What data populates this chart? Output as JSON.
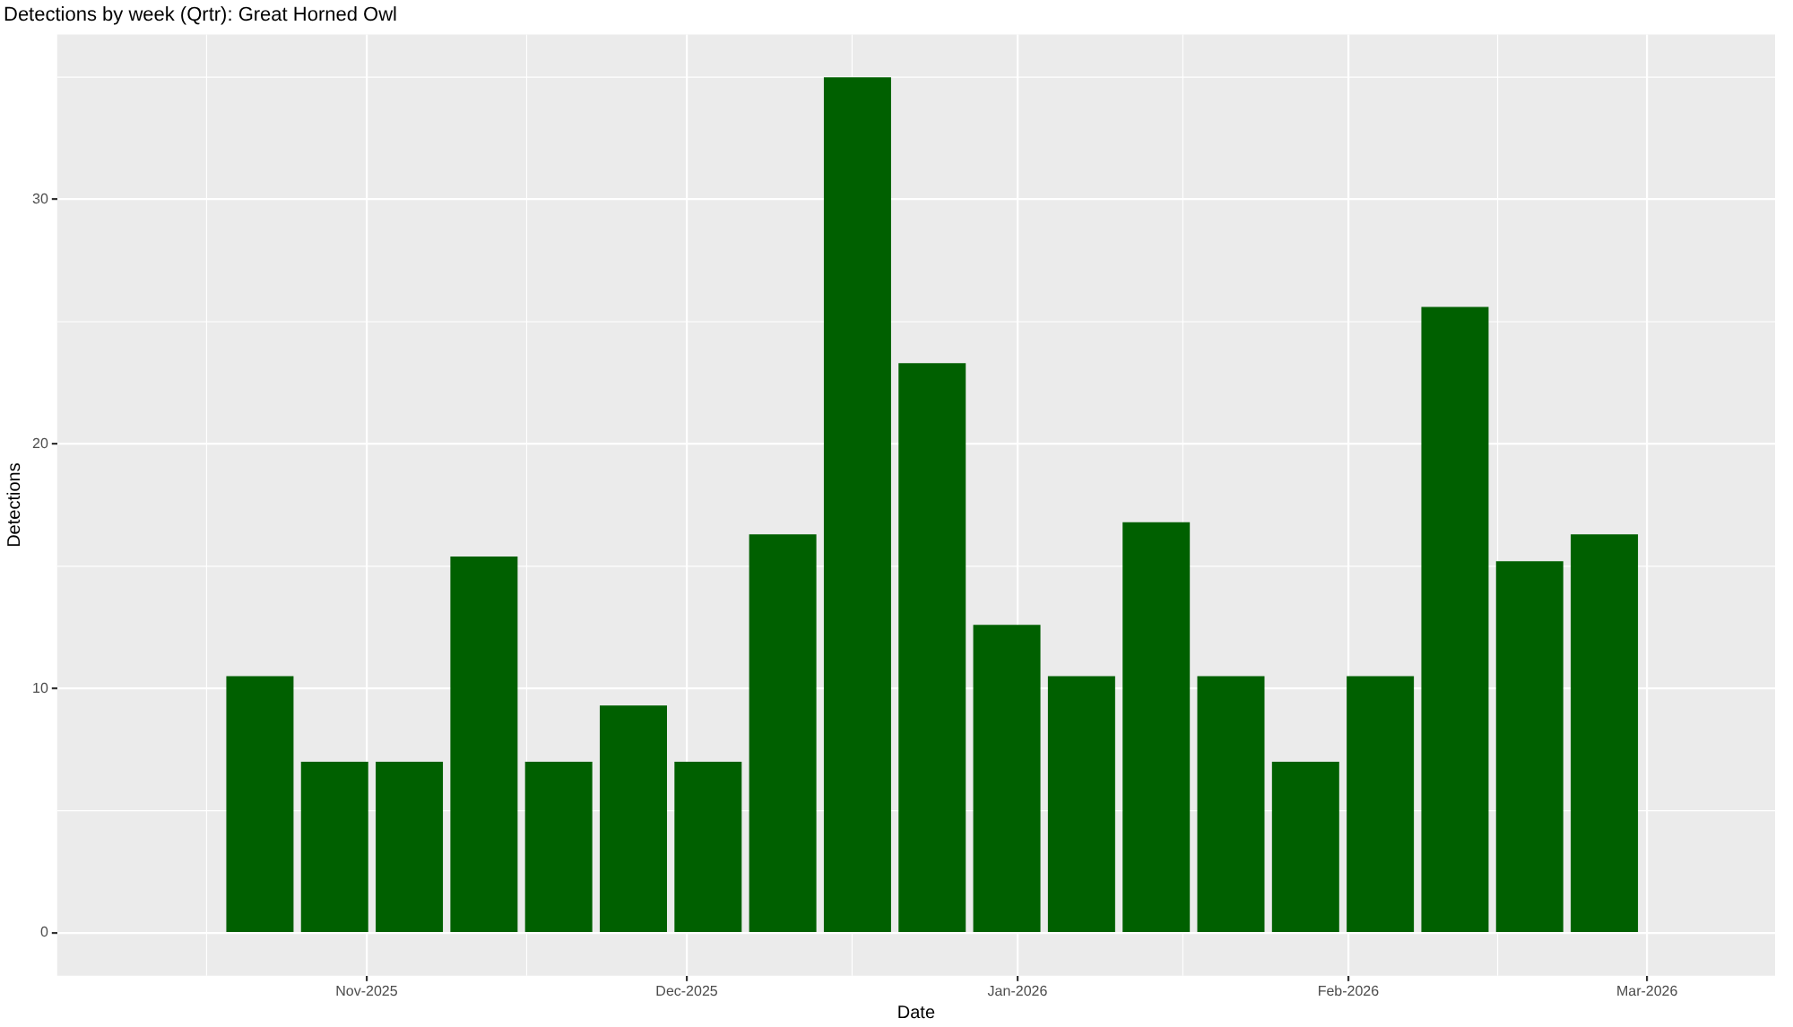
{
  "chart_data": {
    "type": "bar",
    "title": "Detections by week (Qrtr): Great Horned Owl",
    "xlabel": "Date",
    "ylabel": "Detections",
    "x": [
      "2025-10-22",
      "2025-10-29",
      "2025-11-05",
      "2025-11-12",
      "2025-11-19",
      "2025-11-26",
      "2025-12-03",
      "2025-12-10",
      "2025-12-17",
      "2025-12-24",
      "2025-12-31",
      "2026-01-07",
      "2026-01-14",
      "2026-01-21",
      "2026-01-28",
      "2026-02-04",
      "2026-02-11",
      "2026-02-18",
      "2026-02-25"
    ],
    "values": [
      10.5,
      7,
      7,
      15.4,
      7,
      9.3,
      7,
      16.3,
      35,
      23.3,
      12.6,
      10.5,
      16.8,
      10.5,
      7,
      10.5,
      25.6,
      15.2,
      16.3
    ],
    "color": "#006000",
    "xlim": [
      "2025-10-03",
      "2026-03-13"
    ],
    "xticks": [
      {
        "value": "2025-11-01",
        "label": "Nov-2025"
      },
      {
        "value": "2025-12-01",
        "label": "Dec-2025"
      },
      {
        "value": "2026-01-01",
        "label": "Jan-2026"
      },
      {
        "value": "2026-02-01",
        "label": "Feb-2026"
      },
      {
        "value": "2026-03-01",
        "label": "Mar-2026"
      }
    ],
    "ylim": [
      -1.75,
      36.75
    ],
    "yticks": [
      0,
      10,
      20,
      30
    ],
    "grid": true
  }
}
